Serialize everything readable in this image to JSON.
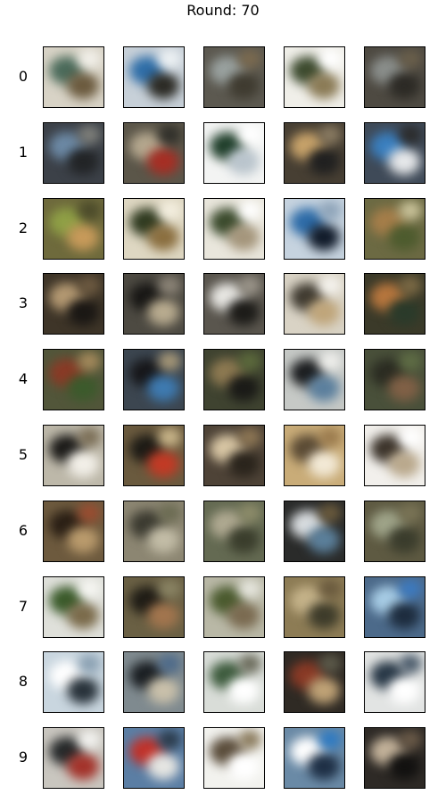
{
  "title": "Round: 70",
  "rows": [
    "0",
    "1",
    "2",
    "3",
    "4",
    "5",
    "6",
    "7",
    "8",
    "9"
  ],
  "cells": [
    [
      {
        "bg": "#d8d3c6",
        "a": "#4a6a5a",
        "b": "#6b5a3e",
        "c": "#f2f0ea"
      },
      {
        "bg": "#c7d0d8",
        "a": "#2f6ea8",
        "b": "#2b2a24",
        "c": "#eef2f4"
      },
      {
        "bg": "#5c5950",
        "a": "#9aa2a0",
        "b": "#3f3b30",
        "c": "#7b6a4f"
      },
      {
        "bg": "#f0efe9",
        "a": "#3c4a2e",
        "b": "#8a7a55",
        "c": "#ffffff"
      },
      {
        "bg": "#4e4a42",
        "a": "#8b8f8c",
        "b": "#2c2a25",
        "c": "#6a5f4b"
      }
    ],
    [
      {
        "bg": "#3c4148",
        "a": "#6d8aa6",
        "b": "#222426",
        "c": "#7e7f7a"
      },
      {
        "bg": "#5b5649",
        "a": "#b5a88f",
        "b": "#a62e24",
        "c": "#2f2e29"
      },
      {
        "bg": "#f3f4f3",
        "a": "#1f3e2a",
        "b": "#b9c4cc",
        "c": "#ffffff"
      },
      {
        "bg": "#473f33",
        "a": "#c9a46b",
        "b": "#202020",
        "c": "#8a7b62"
      },
      {
        "bg": "#3f4a58",
        "a": "#3a7fbf",
        "b": "#e6e8ea",
        "c": "#2b2b2b"
      }
    ],
    [
      {
        "bg": "#6e6a3c",
        "a": "#8fa046",
        "b": "#c79a5a",
        "c": "#4b4a2a"
      },
      {
        "bg": "#ded7c2",
        "a": "#2f3a20",
        "b": "#8a6e3f",
        "c": "#f4efe0"
      },
      {
        "bg": "#e9e6dc",
        "a": "#3a4a2c",
        "b": "#a4957b",
        "c": "#ffffff"
      },
      {
        "bg": "#c6d3df",
        "a": "#2e6ca8",
        "b": "#111b2a",
        "c": "#8da3b8"
      },
      {
        "bg": "#6c6a43",
        "a": "#a67e4a",
        "b": "#4d5b2e",
        "c": "#cbc49b"
      }
    ],
    [
      {
        "bg": "#3e3528",
        "a": "#b59a73",
        "b": "#1a1714",
        "c": "#6d5a41"
      },
      {
        "bg": "#4d4a42",
        "a": "#181715",
        "b": "#b8ab8f",
        "c": "#8d8578"
      },
      {
        "bg": "#5a564e",
        "a": "#e9e8e4",
        "b": "#1c1b18",
        "c": "#9b958a"
      },
      {
        "bg": "#d9d3c5",
        "a": "#3f3a30",
        "b": "#bfa57a",
        "c": "#f5f3ee"
      },
      {
        "bg": "#3b3a29",
        "a": "#b8773e",
        "b": "#2a3a2a",
        "c": "#7c6a45"
      }
    ],
    [
      {
        "bg": "#52563a",
        "a": "#8a3a26",
        "b": "#3c5a2c",
        "c": "#a58a5c"
      },
      {
        "bg": "#3c4650",
        "a": "#17171a",
        "b": "#3e7ab0",
        "c": "#a79878"
      },
      {
        "bg": "#3f4330",
        "a": "#8e7a52",
        "b": "#1a1a17",
        "c": "#5c6a3c"
      },
      {
        "bg": "#c6c9c6",
        "a": "#1b1d1f",
        "b": "#5b7f9d",
        "c": "#efefec"
      },
      {
        "bg": "#49503a",
        "a": "#2b2c22",
        "b": "#806046",
        "c": "#5f6d45"
      }
    ],
    [
      {
        "bg": "#bdb8a9",
        "a": "#1b1a18",
        "b": "#f2efe8",
        "c": "#7a6d55"
      },
      {
        "bg": "#6a5a3e",
        "a": "#1d1b16",
        "b": "#c23a25",
        "c": "#cbb78b"
      },
      {
        "bg": "#4e4337",
        "a": "#d9c7a5",
        "b": "#2a241c",
        "c": "#8d7654"
      },
      {
        "bg": "#c9ac78",
        "a": "#5a4a34",
        "b": "#f2e9d6",
        "c": "#9a7a4d"
      },
      {
        "bg": "#f2f0ec",
        "a": "#3b332a",
        "b": "#b9a88c",
        "c": "#ffffff"
      }
    ],
    [
      {
        "bg": "#6d5a3e",
        "a": "#2a1f15",
        "b": "#b99a6c",
        "c": "#9a4c30"
      },
      {
        "bg": "#8c8672",
        "a": "#3b3a30",
        "b": "#c2bca6",
        "c": "#6b6b52"
      },
      {
        "bg": "#646a52",
        "a": "#b0aa92",
        "b": "#3a3d2c",
        "c": "#8d8c6a"
      },
      {
        "bg": "#2a2b2a",
        "a": "#d9dde0",
        "b": "#5b7f9a",
        "c": "#6a5a3c"
      },
      {
        "bg": "#5e5a42",
        "a": "#a0a58a",
        "b": "#3a3c2c",
        "c": "#7a7456"
      }
    ],
    [
      {
        "bg": "#dfe0da",
        "a": "#3a5a2a",
        "b": "#7a6a4a",
        "c": "#f6f6f2"
      },
      {
        "bg": "#6a6044",
        "a": "#1f1c16",
        "b": "#a2754e",
        "c": "#8a8464"
      },
      {
        "bg": "#b9b8a6",
        "a": "#4a5a2e",
        "b": "#7a6a50",
        "c": "#e6e6de"
      },
      {
        "bg": "#8d7c55",
        "a": "#c5b38a",
        "b": "#3d3b2a",
        "c": "#6a5a3e"
      },
      {
        "bg": "#4c6a8a",
        "a": "#a8cde6",
        "b": "#1d2c3e",
        "c": "#3c7ac0"
      }
    ],
    [
      {
        "bg": "#c9d6df",
        "a": "#ffffff",
        "b": "#28323a",
        "c": "#8aa0b2"
      },
      {
        "bg": "#7f8a8f",
        "a": "#1a1e22",
        "b": "#c9c0aa",
        "c": "#4d6a8a"
      },
      {
        "bg": "#d9ddd8",
        "a": "#3c5a3c",
        "b": "#ffffff",
        "c": "#6a6a5a"
      },
      {
        "bg": "#2f2a24",
        "a": "#8a3a26",
        "b": "#bfa276",
        "c": "#5c5a4a"
      },
      {
        "bg": "#e2e4e3",
        "a": "#263645",
        "b": "#ffffff",
        "c": "#4a5a6a"
      }
    ],
    [
      {
        "bg": "#c9c6bf",
        "a": "#26292a",
        "b": "#a3322a",
        "c": "#f3f3f0"
      },
      {
        "bg": "#5b7ea4",
        "a": "#c0322a",
        "b": "#e6e6e2",
        "c": "#2a3a4a"
      },
      {
        "bg": "#f2f2ee",
        "a": "#5a4c3a",
        "b": "#ffffff",
        "c": "#8a7a5c"
      },
      {
        "bg": "#6a8aa6",
        "a": "#ffffff",
        "b": "#1e2f45",
        "c": "#2e7ac2"
      },
      {
        "bg": "#2e2a26",
        "a": "#c4b39b",
        "b": "#121110",
        "c": "#6a5a48"
      }
    ]
  ]
}
